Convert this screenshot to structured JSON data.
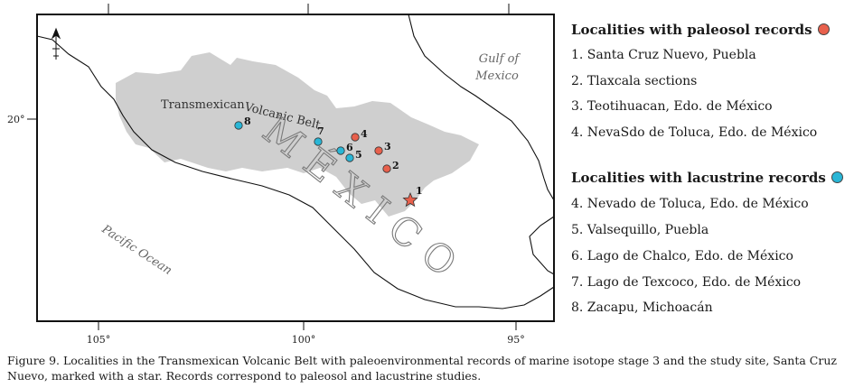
{
  "map": {
    "region_label_line1": "Transmexican",
    "region_label_line2": "Volcanic Belt",
    "gulf_line1": "Gulf of",
    "gulf_line2": "Mexico",
    "ocean_label": "Pacific Ocean",
    "country_label": "MÉXICO",
    "lat_label": "20°",
    "lon_labels": [
      "105°",
      "100°",
      "95°"
    ],
    "colors": {
      "paleosol": "#e8604c",
      "lacustrine": "#29b6d6",
      "belt": "#cfcfcf",
      "site_star": "#e8604c"
    },
    "site_numbers": {
      "n1": "1",
      "n2": "2",
      "n3": "3",
      "n4": "4",
      "n5": "5",
      "n6": "6",
      "n7": "7",
      "n8": "8"
    }
  },
  "legend": {
    "paleosol_title": "Localities with paleosol records",
    "paleosol_items": [
      "1. Santa Cruz Nuevo, Puebla",
      "2. Tlaxcala sections",
      "3. Teotihuacan, Edo. de México",
      "4. NevaSdo de Toluca, Edo. de México"
    ],
    "lacustrine_title": "Localities with lacustrine records",
    "lacustrine_items": [
      "4. Nevado de Toluca, Edo. de México",
      "5. Valsequillo, Puebla",
      "6. Lago de Chalco, Edo. de México",
      "7. Lago de Texcoco, Edo. de México",
      "8. Zacapu, Michoacán"
    ]
  },
  "caption": "Figure 9. Localities in the Transmexican Volcanic Belt with paleoenvironmental records of marine isotope stage 3 and the study site, Santa Cruz Nuevo, marked with a star. Records correspond to paleosol and lacustrine studies."
}
